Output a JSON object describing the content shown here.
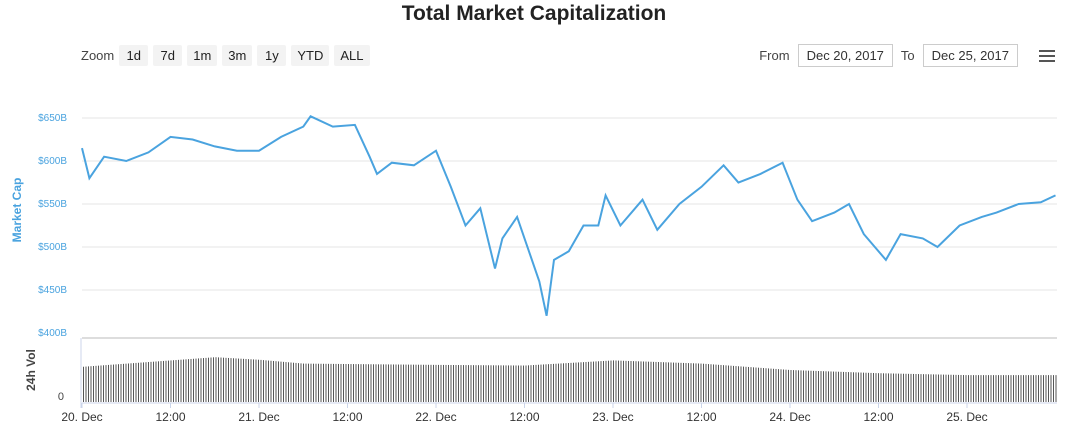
{
  "title": "Total Market Capitalization",
  "zoom": {
    "label": "Zoom",
    "buttons": [
      "1d",
      "7d",
      "1m",
      "3m",
      "1y",
      "YTD",
      "ALL"
    ]
  },
  "range": {
    "from_label": "From",
    "from": "Dec 20, 2017",
    "to_label": "To",
    "to": "Dec 25, 2017"
  },
  "menu_icon": "hamburger-icon",
  "chart_data": {
    "type": "line",
    "title": "Total Market Capitalization",
    "ylabel": "Market Cap",
    "ylim": [
      400,
      650
    ],
    "yunit": "B USD",
    "yticks": [
      "$400B",
      "$450B",
      "$500B",
      "$550B",
      "$600B",
      "$650B"
    ],
    "xticks": [
      "20. Dec",
      "12:00",
      "21. Dec",
      "12:00",
      "22. Dec",
      "12:00",
      "23. Dec",
      "12:00",
      "24. Dec",
      "12:00",
      "25. Dec"
    ],
    "line_color": "#4aa3df",
    "x": [
      "2017-12-20 00:00",
      "2017-12-20 01:00",
      "2017-12-20 03:00",
      "2017-12-20 06:00",
      "2017-12-20 09:00",
      "2017-12-20 12:00",
      "2017-12-20 15:00",
      "2017-12-20 18:00",
      "2017-12-20 21:00",
      "2017-12-21 00:00",
      "2017-12-21 03:00",
      "2017-12-21 06:00",
      "2017-12-21 07:00",
      "2017-12-21 10:00",
      "2017-12-21 13:00",
      "2017-12-21 15:00",
      "2017-12-21 16:00",
      "2017-12-21 18:00",
      "2017-12-21 21:00",
      "2017-12-22 00:00",
      "2017-12-22 02:00",
      "2017-12-22 04:00",
      "2017-12-22 06:00",
      "2017-12-22 08:00",
      "2017-12-22 09:00",
      "2017-12-22 11:00",
      "2017-12-22 12:00",
      "2017-12-22 14:00",
      "2017-12-22 15:00",
      "2017-12-22 16:00",
      "2017-12-22 18:00",
      "2017-12-22 20:00",
      "2017-12-22 22:00",
      "2017-12-22 23:00",
      "2017-12-23 01:00",
      "2017-12-23 04:00",
      "2017-12-23 06:00",
      "2017-12-23 09:00",
      "2017-12-23 12:00",
      "2017-12-23 15:00",
      "2017-12-23 17:00",
      "2017-12-23 20:00",
      "2017-12-23 23:00",
      "2017-12-24 01:00",
      "2017-12-24 03:00",
      "2017-12-24 06:00",
      "2017-12-24 08:00",
      "2017-12-24 10:00",
      "2017-12-24 13:00",
      "2017-12-24 15:00",
      "2017-12-24 18:00",
      "2017-12-24 20:00",
      "2017-12-24 23:00",
      "2017-12-25 02:00",
      "2017-12-25 04:00",
      "2017-12-25 07:00",
      "2017-12-25 10:00",
      "2017-12-25 12:00"
    ],
    "values": [
      615,
      580,
      605,
      600,
      610,
      628,
      625,
      617,
      612,
      612,
      628,
      640,
      652,
      640,
      642,
      605,
      585,
      598,
      595,
      612,
      570,
      525,
      545,
      475,
      510,
      535,
      510,
      460,
      420,
      485,
      495,
      525,
      525,
      560,
      525,
      555,
      520,
      550,
      570,
      595,
      575,
      585,
      598,
      555,
      530,
      540,
      550,
      515,
      485,
      515,
      510,
      500,
      525,
      535,
      540,
      550,
      552,
      560
    ],
    "volume": {
      "label": "24h Vol",
      "ytick": "0",
      "bar_color": "#555555",
      "x": [
        "2017-12-20 00:00",
        "2017-12-20 06:00",
        "2017-12-20 18:00",
        "2017-12-21 00:00",
        "2017-12-21 06:00",
        "2017-12-22 00:00",
        "2017-12-22 12:00",
        "2017-12-23 00:00",
        "2017-12-23 12:00",
        "2017-12-24 00:00",
        "2017-12-24 12:00",
        "2017-12-25 00:00",
        "2017-12-25 12:00"
      ],
      "relative_level": [
        0.55,
        0.6,
        0.7,
        0.66,
        0.6,
        0.58,
        0.57,
        0.65,
        0.6,
        0.5,
        0.45,
        0.42,
        0.42
      ]
    }
  }
}
